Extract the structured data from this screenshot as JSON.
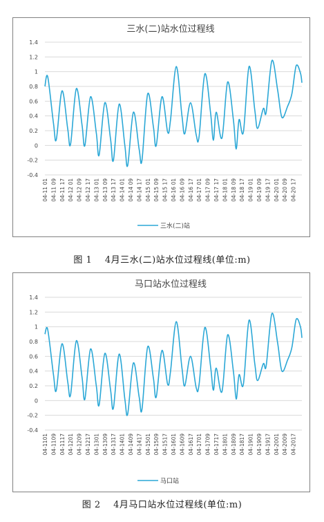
{
  "figures": [
    {
      "caption_number": "图 1",
      "caption_text": "4月三水(二)站水位过程线(单位:m)"
    },
    {
      "caption_number": "图 2",
      "caption_text": "4月马口站水位过程线(单位:m)"
    }
  ],
  "chart_data": [
    {
      "type": "line",
      "title": "三水(二)站水位过程线",
      "xlabel": "",
      "ylabel": "",
      "ylim": [
        -0.4,
        1.4
      ],
      "yticks": [
        "1.4",
        "1.2",
        "1",
        "0.8",
        "0.6",
        "0.4",
        "0.2",
        "0",
        "-0.2",
        "-0.4"
      ],
      "grid": true,
      "legend": "bottom",
      "color": "#2aa7d6",
      "xticks": [
        "04-11 01",
        "04-11 09",
        "04-11 17",
        "04-12 01",
        "04-12 09",
        "04-12 17",
        "04-13 01",
        "04-13 09",
        "04-13 17",
        "04-14 01",
        "04-14 09",
        "04-14 17",
        "04-15 01",
        "04-15 09",
        "04-15 17",
        "04-16 01",
        "04-16 09",
        "04-16 17",
        "04-17 01",
        "04-17 09",
        "04-17 17",
        "04-18 01",
        "04-18 09",
        "04-18 17",
        "04-19 01",
        "04-19 09",
        "04-19 17",
        "04-20 01",
        "04-20 09",
        "04-20 17"
      ],
      "series": [
        {
          "name": "三水(二)站",
          "points": [
            [
              0,
              0.8
            ],
            [
              2,
              0.93
            ],
            [
              6,
              0.3
            ],
            [
              8,
              0.08
            ],
            [
              12,
              0.74
            ],
            [
              16,
              0.22
            ],
            [
              18,
              0.02
            ],
            [
              22,
              0.77
            ],
            [
              26,
              0.28
            ],
            [
              28,
              0.0
            ],
            [
              32,
              0.66
            ],
            [
              36,
              0.17
            ],
            [
              38,
              -0.13
            ],
            [
              42,
              0.58
            ],
            [
              46,
              0.08
            ],
            [
              48,
              -0.2
            ],
            [
              52,
              0.56
            ],
            [
              56,
              0.0
            ],
            [
              58,
              -0.27
            ],
            [
              62,
              0.45
            ],
            [
              66,
              -0.05
            ],
            [
              68,
              -0.2
            ],
            [
              72,
              0.7
            ],
            [
              76,
              0.25
            ],
            [
              78,
              0.0
            ],
            [
              82,
              0.66
            ],
            [
              86,
              0.18
            ],
            [
              88,
              0.35
            ],
            [
              92,
              1.07
            ],
            [
              96,
              0.4
            ],
            [
              98,
              0.16
            ],
            [
              102,
              0.58
            ],
            [
              106,
              0.14
            ],
            [
              108,
              0.12
            ],
            [
              112,
              0.97
            ],
            [
              116,
              0.45
            ],
            [
              118,
              0.07
            ],
            [
              120,
              0.45
            ],
            [
              124,
              0.1
            ],
            [
              128,
              0.86
            ],
            [
              132,
              0.35
            ],
            [
              134,
              -0.05
            ],
            [
              136,
              0.35
            ],
            [
              139,
              0.18
            ],
            [
              143,
              1.07
            ],
            [
              147,
              0.48
            ],
            [
              149,
              0.23
            ],
            [
              153,
              0.5
            ],
            [
              155,
              0.45
            ],
            [
              159,
              1.15
            ],
            [
              163,
              0.75
            ],
            [
              166,
              0.38
            ],
            [
              170,
              0.53
            ],
            [
              173,
              0.7
            ],
            [
              176,
              1.08
            ],
            [
              179,
              0.98
            ],
            [
              180,
              0.85
            ]
          ]
        }
      ]
    },
    {
      "type": "line",
      "title": "马口站水位过程线",
      "xlabel": "",
      "ylabel": "",
      "ylim": [
        -0.4,
        1.4
      ],
      "yticks": [
        "1.4",
        "1.2",
        "1",
        "0.8",
        "0.6",
        "0.4",
        "0.2",
        "0",
        "-0.2",
        "-0.4"
      ],
      "grid": true,
      "legend": "bottom",
      "color": "#2aa7d6",
      "xticks": [
        "04-1101",
        "04-1109",
        "04-1117",
        "04-1201",
        "04-1209",
        "04-1217",
        "04-1301",
        "04-1309",
        "04-1317",
        "04-1401",
        "04-1409",
        "04-1417",
        "04-1501",
        "04-1509",
        "04-1517",
        "04-1601",
        "04-1609",
        "04-1617",
        "04-1701",
        "04-1709",
        "04-1717",
        "04-1801",
        "04-1809",
        "04-1817",
        "04-1901",
        "04-1909",
        "04-1917",
        "04-2001",
        "04-2009",
        "04-2017"
      ],
      "series": [
        {
          "name": "马口站",
          "points": [
            [
              0,
              0.9
            ],
            [
              2,
              0.96
            ],
            [
              6,
              0.35
            ],
            [
              8,
              0.14
            ],
            [
              12,
              0.77
            ],
            [
              16,
              0.25
            ],
            [
              18,
              0.08
            ],
            [
              22,
              0.81
            ],
            [
              26,
              0.32
            ],
            [
              28,
              0.02
            ],
            [
              32,
              0.7
            ],
            [
              36,
              0.2
            ],
            [
              38,
              -0.06
            ],
            [
              42,
              0.64
            ],
            [
              46,
              0.14
            ],
            [
              48,
              -0.1
            ],
            [
              52,
              0.63
            ],
            [
              56,
              0.02
            ],
            [
              58,
              -0.18
            ],
            [
              62,
              0.51
            ],
            [
              66,
              0.05
            ],
            [
              68,
              -0.12
            ],
            [
              72,
              0.73
            ],
            [
              76,
              0.3
            ],
            [
              78,
              0.05
            ],
            [
              82,
              0.68
            ],
            [
              86,
              0.22
            ],
            [
              88,
              0.4
            ],
            [
              92,
              1.07
            ],
            [
              96,
              0.44
            ],
            [
              98,
              0.2
            ],
            [
              102,
              0.6
            ],
            [
              106,
              0.17
            ],
            [
              108,
              0.22
            ],
            [
              112,
              0.99
            ],
            [
              116,
              0.47
            ],
            [
              118,
              0.14
            ],
            [
              120,
              0.44
            ],
            [
              124,
              0.12
            ],
            [
              128,
              0.89
            ],
            [
              132,
              0.4
            ],
            [
              134,
              0.02
            ],
            [
              136,
              0.35
            ],
            [
              139,
              0.22
            ],
            [
              143,
              1.09
            ],
            [
              147,
              0.5
            ],
            [
              149,
              0.27
            ],
            [
              153,
              0.5
            ],
            [
              155,
              0.47
            ],
            [
              159,
              1.18
            ],
            [
              163,
              0.78
            ],
            [
              166,
              0.4
            ],
            [
              170,
              0.55
            ],
            [
              173,
              0.72
            ],
            [
              176,
              1.1
            ],
            [
              179,
              1.0
            ],
            [
              180,
              0.85
            ]
          ]
        }
      ]
    }
  ]
}
